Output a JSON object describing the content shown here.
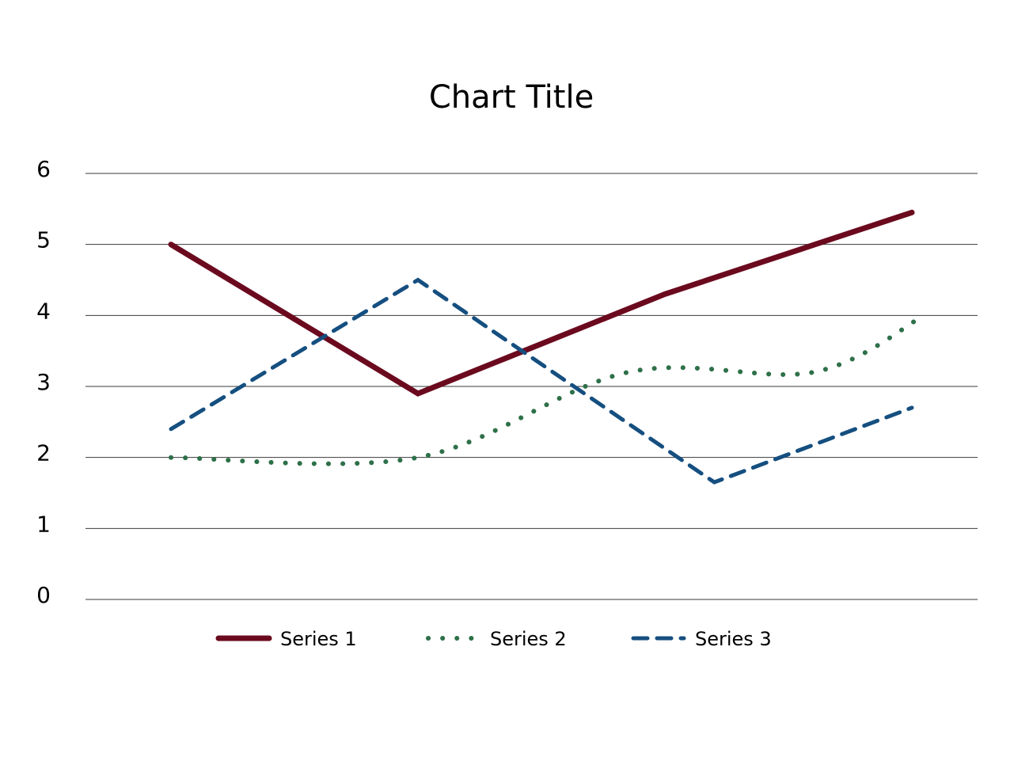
{
  "chart_data": {
    "type": "line",
    "title": "Chart Title",
    "xlabel": "",
    "ylabel": "",
    "ylim": [
      0,
      6
    ],
    "yticks": [
      "0",
      "1",
      "2",
      "3",
      "4",
      "5",
      "6"
    ],
    "grid": true,
    "legend_position": "bottom",
    "x_points": 4,
    "series": [
      {
        "name": "Series 1",
        "values": [
          5.0,
          2.9,
          4.3,
          5.45
        ],
        "color": "#6b0a1e",
        "style": "solid",
        "smooth": false
      },
      {
        "name": "Series 2",
        "values": [
          2.0,
          2.0,
          3.2,
          3.2,
          4.0
        ],
        "x_positions": [
          0,
          1,
          1.85,
          2.6,
          3.05
        ],
        "color": "#2e7049",
        "style": "dotted",
        "smooth": true
      },
      {
        "name": "Series 3",
        "values": [
          2.4,
          4.5,
          1.65,
          2.7
        ],
        "x_positions": [
          0,
          1,
          2.2,
          3.0
        ],
        "color": "#154f80",
        "style": "dashed",
        "smooth": false
      }
    ]
  }
}
